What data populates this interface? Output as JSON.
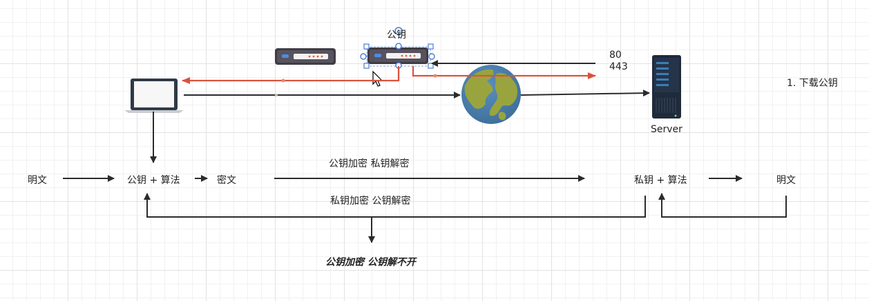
{
  "icons": {
    "laptop": "laptop-icon",
    "router": "router-icon",
    "globe": "globe-icon",
    "server": "server-icon",
    "cursor": "mouse-cursor-icon"
  },
  "colors": {
    "arrow": "#2b2b2b",
    "accent_arrow": "#d9533c",
    "selection_handle": "#4a7bd6",
    "router_body": "#3f3c44",
    "router_light": "#e0603c",
    "globe_ocean": "#3e6f99",
    "globe_land": "#99a43e",
    "server_body": "#1f2b3b",
    "server_slot": "#3a7fb5"
  },
  "labels": {
    "router_label": "公钥",
    "ports": [
      "80",
      "443"
    ],
    "step1": "1. 下载公钥",
    "server": "Server",
    "plaintext_left": "明文",
    "pubkey_algo": "公钥 + 算法",
    "ciphertext": "密文",
    "pub_enc_priv_dec": "公钥加密  私钥解密",
    "privkey_algo": "私钥 + 算法",
    "plaintext_right": "明文",
    "priv_enc_pub_dec": "私钥加密 公钥解密",
    "pub_enc_pub_cannot": "公钥加密 公钥解不开"
  }
}
